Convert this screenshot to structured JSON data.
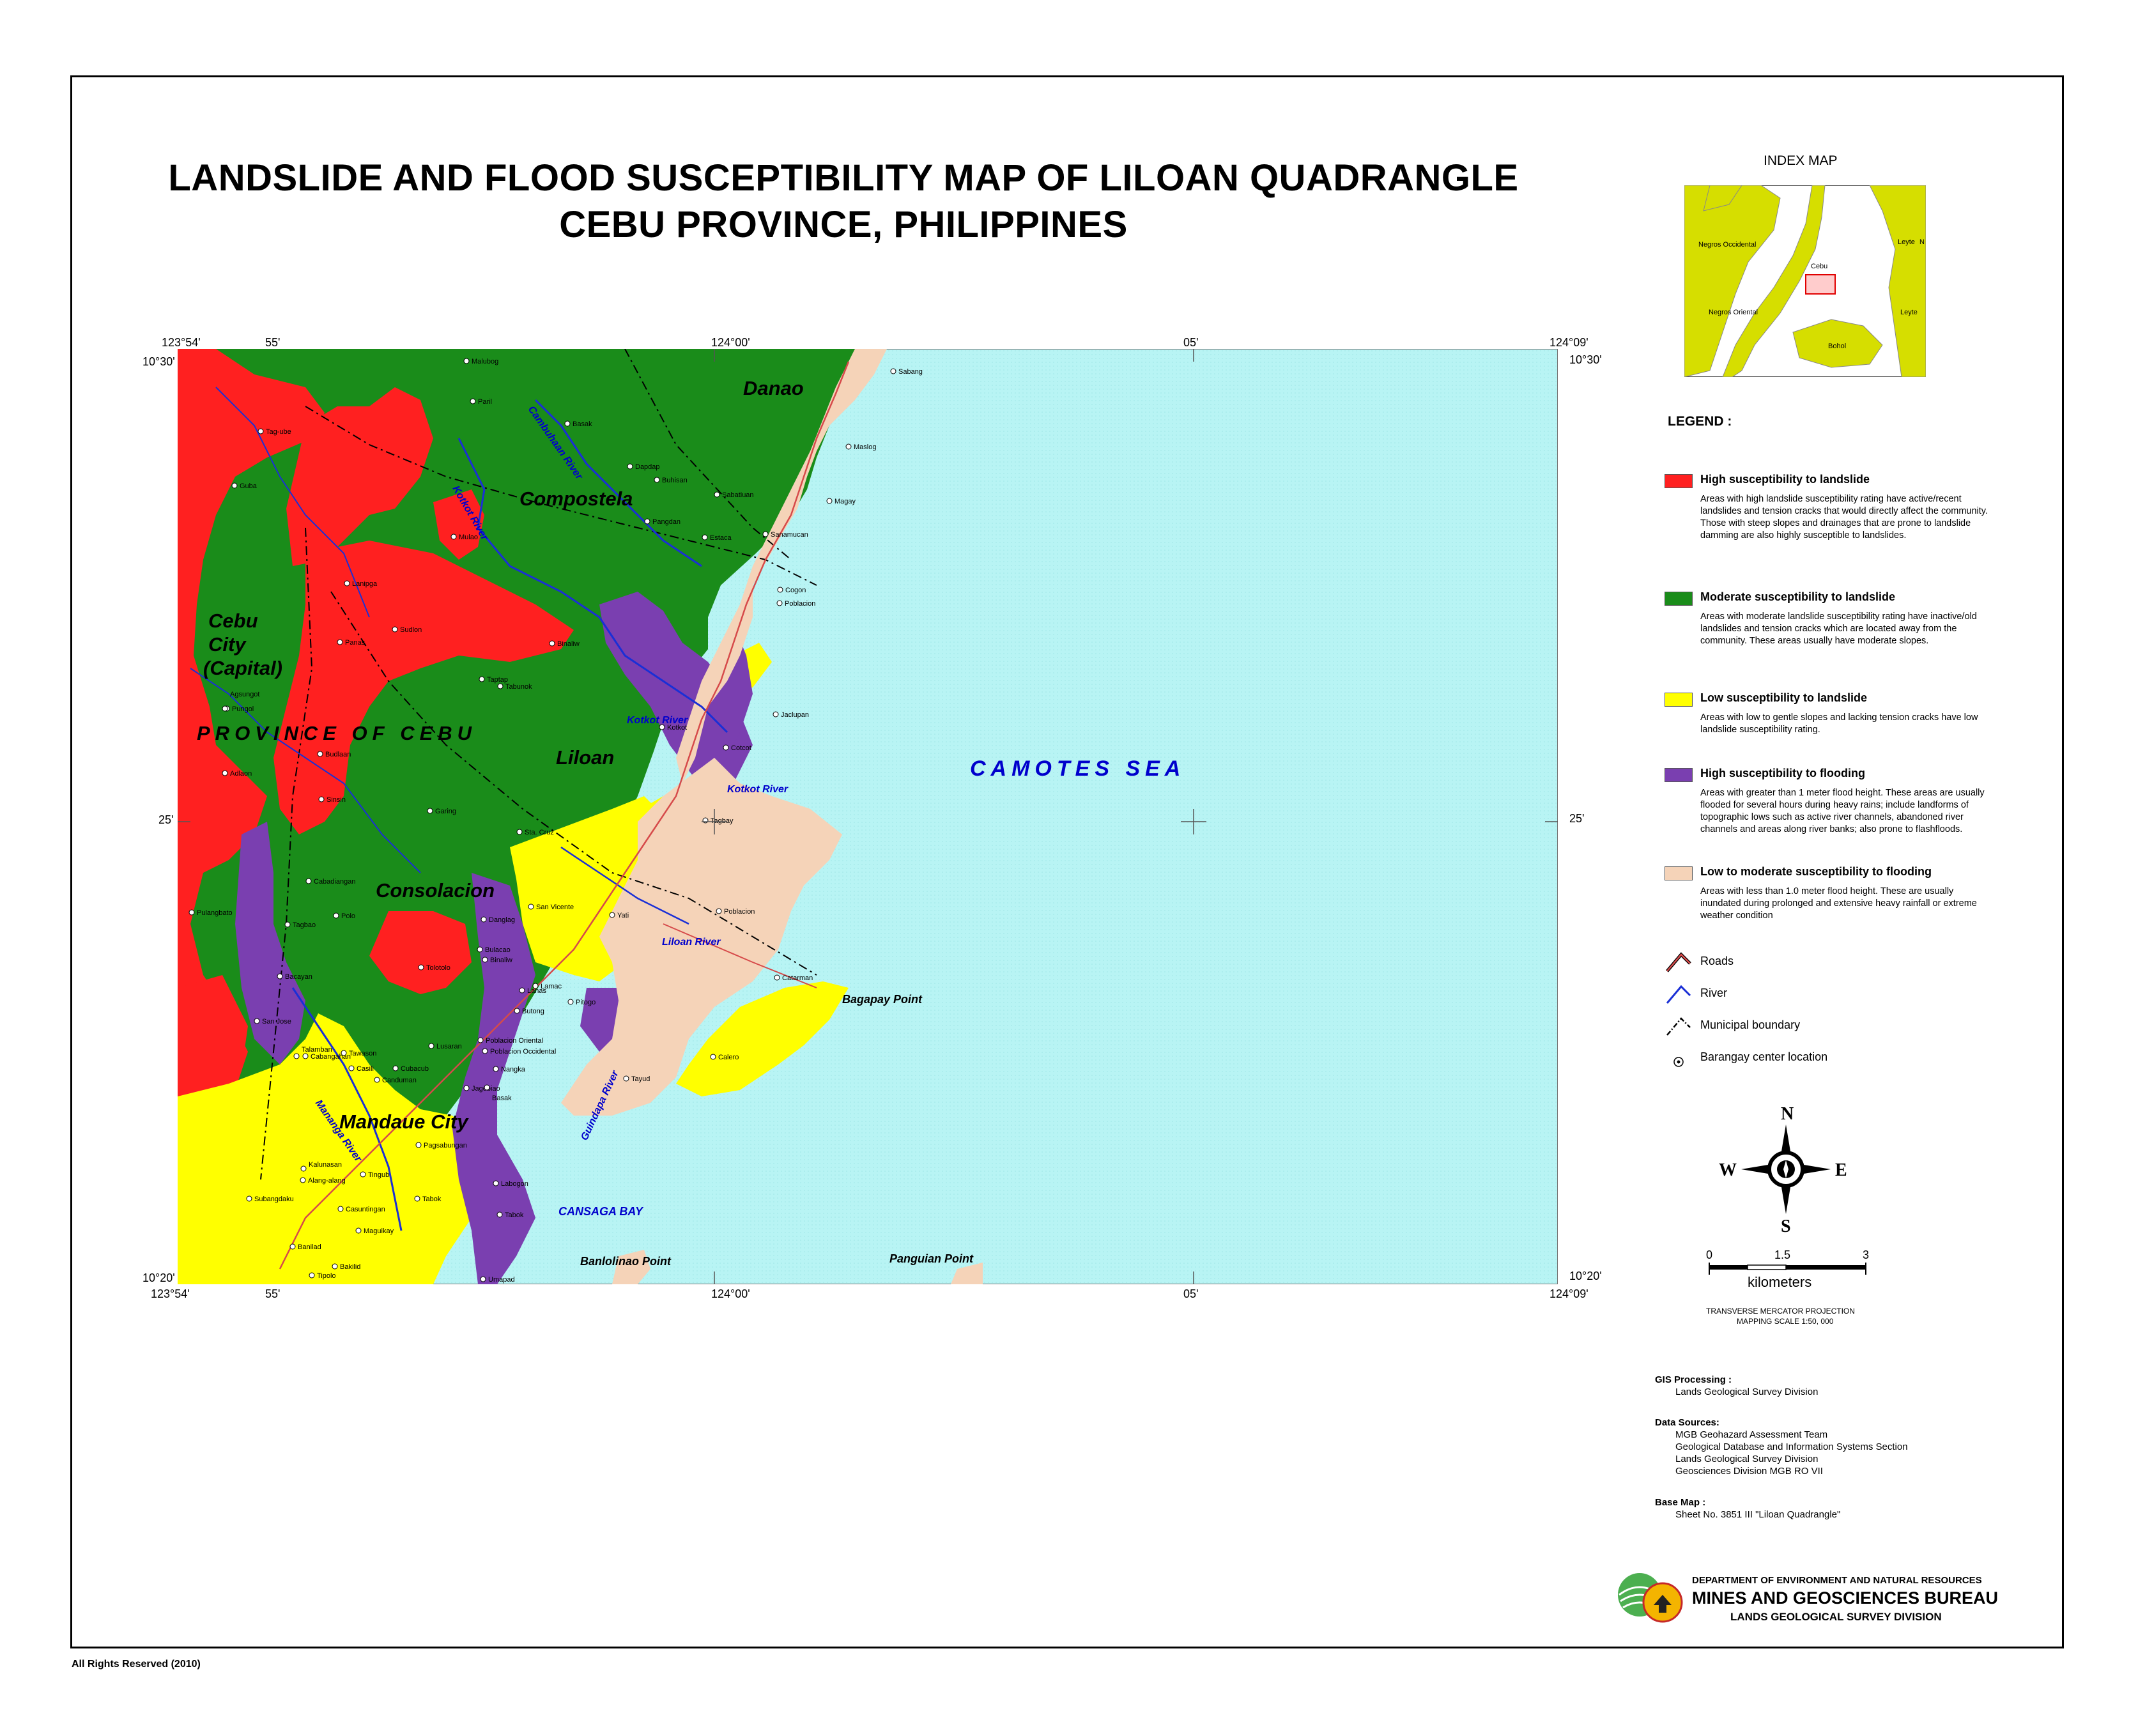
{
  "title": {
    "line1": "LANDSLIDE AND FLOOD SUSCEPTIBILITY MAP OF LILOAN QUADRANGLE",
    "line2": "CEBU PROVINCE,  PHILIPPINES"
  },
  "coords": {
    "top": [
      "123°54'",
      "55'",
      "124°00'",
      "05'",
      "124°09'"
    ],
    "bottom": [
      "123°54'",
      "55'",
      "124°00'",
      "05'",
      "124°09'"
    ],
    "left": [
      "10°30'",
      "25'",
      "10°20'"
    ],
    "right": [
      "10°30'",
      "25'",
      "10°20'"
    ]
  },
  "map": {
    "sea": "CAMOTES SEA",
    "province": "PROVINCE OF CEBU",
    "places_large": [
      "Danao",
      "Compostela",
      "Liloan",
      "Consolacion",
      "Mandaue City"
    ],
    "cebu_city": [
      "Cebu",
      "City",
      "(Capital)"
    ],
    "points": [
      "Bagapay Point",
      "Banlolinao Point",
      "Panguian Point"
    ],
    "bay": "CANSAGA BAY",
    "rivers": [
      "Kotkot River",
      "Kotkot River",
      "Liloan River",
      "Cambuhaan River",
      "Kotkot River",
      "Mananga River",
      "Guindapa River"
    ],
    "barangays": [
      "Sabang",
      "Maslog",
      "Magay",
      "Sanamucan",
      "Poblacion",
      "Cogon",
      "Tagbay",
      "Poblacion",
      "Cotcot",
      "Jaclupan",
      "Catarman",
      "Calero",
      "Tayud",
      "San Vicente",
      "Yati",
      "Lamac",
      "Pitogo",
      "Tolotolo",
      "Casili",
      "Tawason",
      "Cabangahan",
      "Nangka",
      "Jagobiao",
      "Pagsabungan",
      "Tingub",
      "Tabok",
      "Casuntingan",
      "Maguikay",
      "Banilad",
      "Bakilid",
      "Tipolo",
      "Umapad",
      "Labogon",
      "Subangdaku",
      "Alang-alang",
      "Canduman",
      "Cubacub",
      "Basak",
      "Dapdap",
      "Buhisan",
      "Sabatiuan",
      "Mulao",
      "Estaca",
      "Tag-ube",
      "Pangdan",
      "Garing",
      "Sta. Cruz",
      "Tabunok",
      "Lanipga",
      "Panas",
      "Sudlon",
      "Binaliw",
      "Taptap",
      "Adlaon",
      "Pungol",
      "Guba",
      "Paril",
      "Malubog",
      "Sinsin",
      "Budlaan",
      "Agsungot",
      "Pulangbato",
      "Bacayan",
      "Talamban",
      "San Jose",
      "Kalunasan",
      "Tagbao",
      "Cabadiangan",
      "Danglag",
      "Polo",
      "Lusaran",
      "Kotkot",
      "Bulacao",
      "Binaliw",
      "Tabok",
      "Basak",
      "Poblacion Oriental",
      "Poblacion Occidental",
      "Lanas",
      "Butong"
    ]
  },
  "index_map": {
    "title": "INDEX MAP",
    "labels": [
      "Negros Occidental",
      "Negros Oriental",
      "Cebu",
      "Bohol",
      "Leyte",
      "Leyte",
      "N"
    ]
  },
  "legend": {
    "heading": "LEGEND :",
    "items": [
      {
        "color": "#ff2020",
        "title": "High susceptibility to landslide",
        "desc": "Areas with high landslide susceptibility rating have active/recent landslides and   tension cracks that would directly affect the community. Those with steep slopes and drainages that are prone to landslide damming are also highly susceptible to landslides."
      },
      {
        "color": "#1a8c1a",
        "title": "Moderate susceptibility to landslide",
        "desc": "Areas with moderate landslide susceptibility rating have inactive/old landslides and tension cracks which  are located away from the community. These areas usually have moderate slopes."
      },
      {
        "color": "#ffff00",
        "title": "Low susceptibility to landslide",
        "desc": "Areas with low to gentle slopes and lacking tension cracks have low landslide susceptibility rating."
      },
      {
        "color": "#7a3fb0",
        "title": "High susceptibility to flooding",
        "desc": "Areas with greater than 1 meter flood height. These areas are usually flooded for several hours during heavy rains; include landforms of topographic lows such as active river channels, abandoned river channels and areas along river banks; also prone to flashfloods."
      },
      {
        "color": "#f5d3b8",
        "title": "Low to moderate susceptibility to flooding",
        "desc": "Areas with less than 1.0 meter flood height. These are usually inundated during prolonged and extensive heavy rainfall or extreme weather condition"
      }
    ],
    "symbols": [
      "Roads",
      "River",
      "Municipal boundary",
      "Barangay center location"
    ]
  },
  "compass": {
    "n": "N",
    "s": "S",
    "e": "E",
    "w": "W"
  },
  "scale": {
    "ticks": [
      "0",
      "1.5",
      "3"
    ],
    "unit": "kilometers",
    "projection": "TRANSVERSE MERCATOR PROJECTION",
    "mapping_scale": "MAPPING SCALE 1:50, 000"
  },
  "credits": {
    "gis_head": "GIS Processing :",
    "gis": [
      "Lands Geological Survey Division"
    ],
    "sources_head": "Data Sources:",
    "sources": [
      "MGB Geohazard  Assessment Team",
      "Geological Database and Information Systems Section",
      "Lands Geological Survey Division",
      "Geosciences Division MGB RO VII"
    ],
    "base_head": "Base Map :",
    "base": [
      "Sheet No. 3851 III \"Liloan Quadrangle\""
    ]
  },
  "agency": {
    "dept": "DEPARTMENT OF ENVIRONMENT AND NATURAL RESOURCES",
    "bureau": "MINES AND GEOSCIENCES BUREAU",
    "division": "LANDS GEOLOGICAL SURVEY DIVISION"
  },
  "rights": "All Rights Reserved (2010)",
  "colors": {
    "sea": "#b8f4f4",
    "road": "#d64a4a",
    "river": "#1a2fd6",
    "boundary": "#000000",
    "index_land": "#d6de00"
  }
}
